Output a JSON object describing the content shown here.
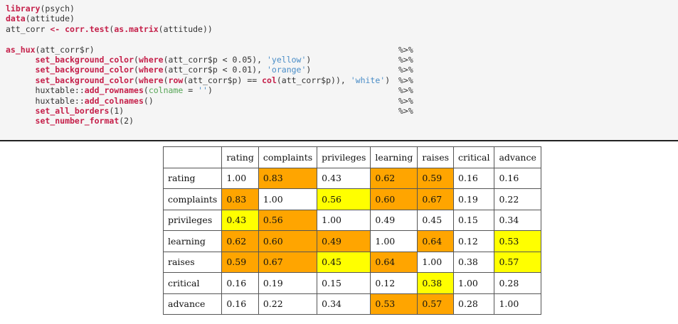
{
  "code": {
    "line1": {
      "fn": "library",
      "rest": "(psych)"
    },
    "line2": {
      "fn": "data",
      "rest": "(attitude)"
    },
    "line3": {
      "a": "att_corr ",
      "op": "<-",
      "sp": " ",
      "fn1": "corr.test",
      "p1": "(",
      "fn2": "as.matrix",
      "p2": "(attitude))"
    },
    "line5": {
      "fn": "as_hux",
      "rest": "(att_corr$r)",
      "pipe": "%>%"
    },
    "line6": {
      "fn": "set_background_color",
      "a": "(",
      "fn2": "where",
      "b": "(att_corr$p < 0.05), ",
      "str": "'yellow'",
      "c": ")",
      "pipe": "%>%"
    },
    "line7": {
      "fn": "set_background_color",
      "a": "(",
      "fn2": "where",
      "b": "(att_corr$p < 0.01), ",
      "str": "'orange'",
      "c": ")",
      "pipe": "%>%"
    },
    "line8": {
      "fn": "set_background_color",
      "a": "(",
      "fn2": "where",
      "b": "(",
      "fn3": "row",
      "c": "(att_corr$p) == ",
      "fn4": "col",
      "d": "(att_corr$p)), ",
      "str": "'white'",
      "e": ")",
      "pipe": "%>%"
    },
    "line9": {
      "ns": "huxtable::",
      "fn": "add_rownames",
      "a": "(",
      "arg": "colname",
      "b": " = ",
      "str": "''",
      "c": ")",
      "pipe": "%>%"
    },
    "line10": {
      "ns": "huxtable::",
      "fn": "add_colnames",
      "a": "()",
      "pipe": "%>%"
    },
    "line11": {
      "fn": "set_all_borders",
      "a": "(1)",
      "pipe": "%>%"
    },
    "line12": {
      "fn": "set_number_format",
      "a": "(2)"
    }
  },
  "table": {
    "colnames": [
      "",
      "rating",
      "complaints",
      "privileges",
      "learning",
      "raises",
      "critical",
      "advance"
    ],
    "rows": [
      {
        "name": "rating",
        "values": [
          "1.00",
          "0.83",
          "0.43",
          "0.62",
          "0.59",
          "0.16",
          "0.16"
        ],
        "colors": [
          "white",
          "orange",
          "white",
          "orange",
          "orange",
          "white",
          "white"
        ]
      },
      {
        "name": "complaints",
        "values": [
          "0.83",
          "1.00",
          "0.56",
          "0.60",
          "0.67",
          "0.19",
          "0.22"
        ],
        "colors": [
          "orange",
          "white",
          "yellow",
          "orange",
          "orange",
          "white",
          "white"
        ]
      },
      {
        "name": "privileges",
        "values": [
          "0.43",
          "0.56",
          "1.00",
          "0.49",
          "0.45",
          "0.15",
          "0.34"
        ],
        "colors": [
          "yellow",
          "orange",
          "white",
          "white",
          "white",
          "white",
          "white"
        ]
      },
      {
        "name": "learning",
        "values": [
          "0.62",
          "0.60",
          "0.49",
          "1.00",
          "0.64",
          "0.12",
          "0.53"
        ],
        "colors": [
          "orange",
          "orange",
          "orange",
          "white",
          "orange",
          "white",
          "yellow"
        ]
      },
      {
        "name": "raises",
        "values": [
          "0.59",
          "0.67",
          "0.45",
          "0.64",
          "1.00",
          "0.38",
          "0.57"
        ],
        "colors": [
          "orange",
          "orange",
          "yellow",
          "orange",
          "white",
          "white",
          "yellow"
        ]
      },
      {
        "name": "critical",
        "values": [
          "0.16",
          "0.19",
          "0.15",
          "0.12",
          "0.38",
          "1.00",
          "0.28"
        ],
        "colors": [
          "white",
          "white",
          "white",
          "white",
          "yellow",
          "white",
          "white"
        ]
      },
      {
        "name": "advance",
        "values": [
          "0.16",
          "0.22",
          "0.34",
          "0.53",
          "0.57",
          "0.28",
          "1.00"
        ],
        "colors": [
          "white",
          "white",
          "white",
          "orange",
          "orange",
          "white",
          "white"
        ]
      }
    ],
    "palette": {
      "yellow": "#ffff00",
      "orange": "#ffa500",
      "white": "#ffffff"
    }
  }
}
